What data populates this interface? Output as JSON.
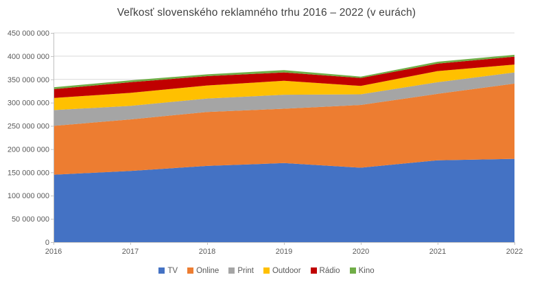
{
  "chart_data": {
    "type": "area",
    "stacked": true,
    "title": "Veľkosť slovenského reklamného trhu 2016 – 2022 (v eurách)",
    "xlabel": "",
    "ylabel": "",
    "grid": true,
    "legend_position": "bottom",
    "x": [
      2016,
      2017,
      2018,
      2019,
      2020,
      2021,
      2022
    ],
    "x_tick_labels": [
      "2016",
      "2017",
      "2018",
      "2019",
      "2020",
      "2021",
      "2022"
    ],
    "ylim": [
      0,
      450000000
    ],
    "y_ticks": [
      0,
      50000000,
      100000000,
      150000000,
      200000000,
      250000000,
      300000000,
      350000000,
      400000000,
      450000000
    ],
    "y_tick_labels": [
      "0",
      "50 000 000",
      "100 000 000",
      "150 000 000",
      "200 000 000",
      "250 000 000",
      "300 000 000",
      "350 000 000",
      "400 000 000",
      "450 000 000"
    ],
    "series": [
      {
        "name": "TV",
        "color": "#4472C4",
        "values": [
          145000000,
          153000000,
          164000000,
          170000000,
          160000000,
          176000000,
          179000000
        ]
      },
      {
        "name": "Online",
        "color": "#ED7D31",
        "values": [
          105000000,
          111000000,
          116000000,
          117000000,
          135000000,
          143000000,
          162000000
        ]
      },
      {
        "name": "Print",
        "color": "#A5A5A5",
        "values": [
          34000000,
          29000000,
          29000000,
          30000000,
          23000000,
          25000000,
          24000000
        ]
      },
      {
        "name": "Outdoor",
        "color": "#FFC000",
        "values": [
          26000000,
          28000000,
          28000000,
          30000000,
          18000000,
          24000000,
          17000000
        ]
      },
      {
        "name": "Rádio",
        "color": "#C00000",
        "values": [
          19000000,
          23000000,
          20000000,
          18000000,
          17000000,
          16000000,
          17000000
        ]
      },
      {
        "name": "Kino",
        "color": "#70AD47",
        "values": [
          4000000,
          4000000,
          4000000,
          5000000,
          3000000,
          4000000,
          4000000
        ]
      }
    ],
    "totals": [
      333000000,
      348000000,
      361000000,
      370000000,
      356000000,
      388000000,
      403000000
    ]
  },
  "colors": {
    "gridline": "#D9D9D9",
    "axis": "#BFBFBF",
    "tick_text": "#595959",
    "title_text": "#404040",
    "background": "#FFFFFF"
  }
}
